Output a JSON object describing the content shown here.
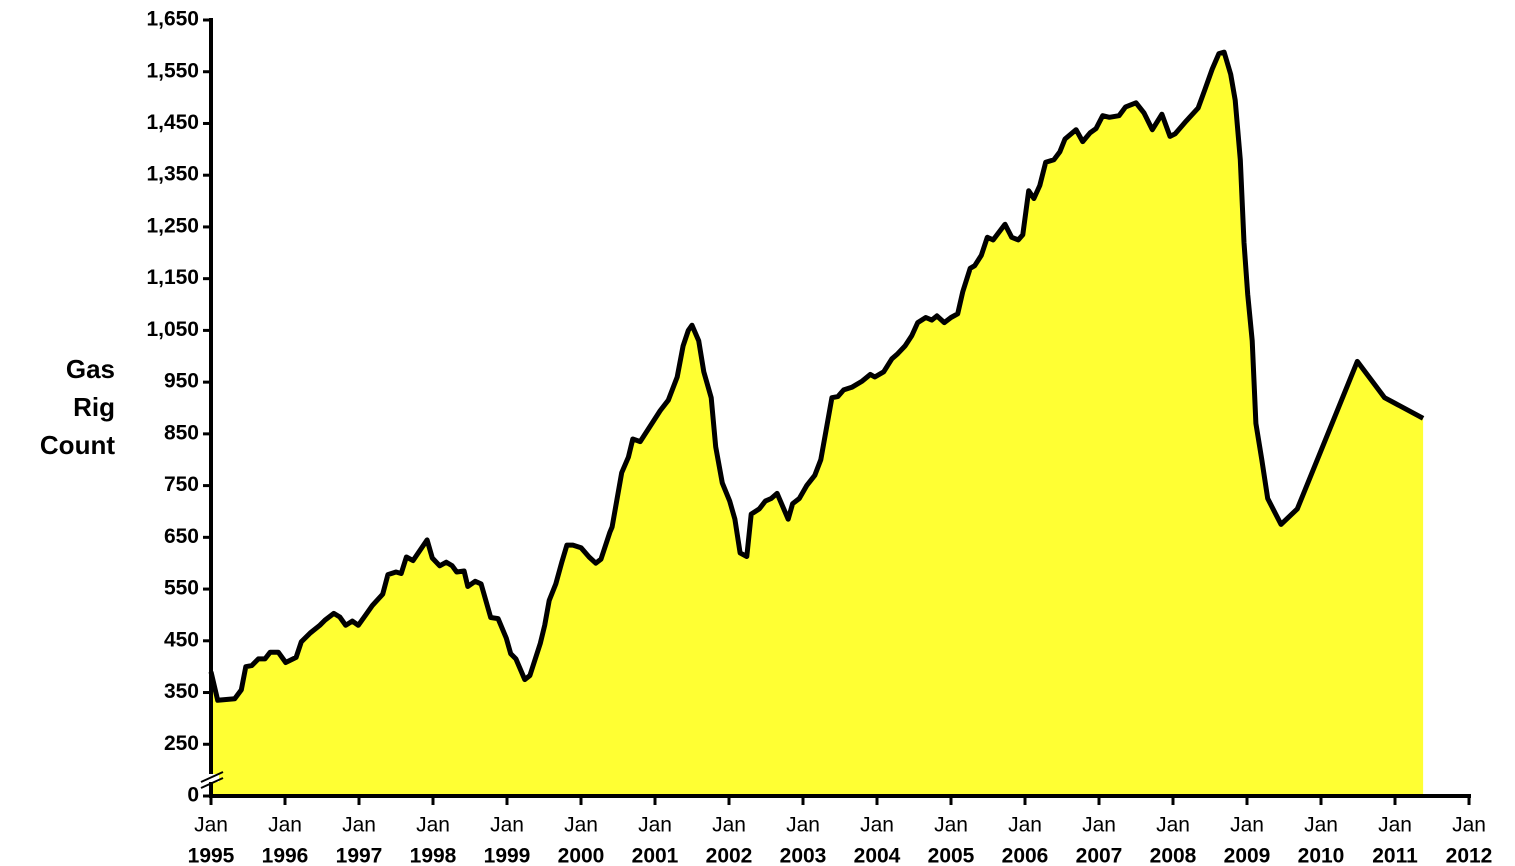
{
  "chart_data": {
    "type": "area",
    "ylabel": "Gas Rig Count",
    "x": [
      1995.0,
      1995.09,
      1995.32,
      1995.41,
      1995.47,
      1995.55,
      1995.64,
      1995.73,
      1995.8,
      1995.91,
      1996.01,
      1996.15,
      1996.22,
      1996.34,
      1996.47,
      1996.54,
      1996.66,
      1996.74,
      1996.82,
      1996.91,
      1996.99,
      1997.09,
      1997.18,
      1997.32,
      1997.39,
      1997.5,
      1997.57,
      1997.64,
      1997.73,
      1997.92,
      1997.99,
      1998.09,
      1998.18,
      1998.26,
      1998.32,
      1998.42,
      1998.47,
      1998.57,
      1998.65,
      1998.78,
      1998.88,
      1998.99,
      1999.05,
      1999.12,
      1999.24,
      1999.31,
      1999.45,
      1999.51,
      1999.57,
      1999.66,
      1999.74,
      1999.81,
      1999.89,
      2000.0,
      2000.11,
      2000.2,
      2000.27,
      2000.39,
      2000.42,
      2000.55,
      2000.64,
      2000.7,
      2000.8,
      2001.07,
      2001.18,
      2001.3,
      2001.38,
      2001.45,
      2001.5,
      2001.59,
      2001.66,
      2001.76,
      2001.82,
      2001.91,
      2002.01,
      2002.08,
      2002.15,
      2002.24,
      2002.3,
      2002.41,
      2002.49,
      2002.57,
      2002.65,
      2002.8,
      2002.86,
      2002.95,
      2003.05,
      2003.16,
      2003.24,
      2003.31,
      2003.39,
      2003.47,
      2003.55,
      2003.66,
      2003.8,
      2003.91,
      2003.97,
      2004.09,
      2004.2,
      2004.28,
      2004.38,
      2004.47,
      2004.55,
      2004.66,
      2004.74,
      2004.81,
      2004.91,
      2005.0,
      2005.09,
      2005.16,
      2005.26,
      2005.32,
      2005.41,
      2005.49,
      2005.57,
      2005.73,
      2005.82,
      2005.91,
      2005.97,
      2006.05,
      2006.12,
      2006.2,
      2006.28,
      2006.39,
      2006.47,
      2006.54,
      2006.69,
      2006.78,
      2006.88,
      2006.96,
      2007.05,
      2007.14,
      2007.27,
      2007.36,
      2007.5,
      2007.61,
      2007.72,
      2007.85,
      2007.96,
      2008.03,
      2008.18,
      2008.34,
      2008.43,
      2008.53,
      2008.62,
      2008.69,
      2008.78,
      2008.84,
      2008.91,
      2008.96,
      2009.01,
      2009.07,
      2009.12,
      2009.2,
      2009.28,
      2009.46,
      2009.68,
      2010.49,
      2010.86,
      2011.38
    ],
    "values": [
      390,
      335,
      338,
      355,
      400,
      402,
      415,
      415,
      428,
      428,
      408,
      418,
      448,
      465,
      480,
      490,
      503,
      496,
      480,
      488,
      480,
      500,
      518,
      540,
      578,
      583,
      580,
      612,
      605,
      645,
      610,
      595,
      602,
      595,
      583,
      585,
      555,
      565,
      560,
      495,
      493,
      455,
      425,
      415,
      375,
      383,
      445,
      480,
      528,
      560,
      602,
      635,
      635,
      630,
      612,
      600,
      608,
      660,
      670,
      775,
      805,
      840,
      835,
      895,
      915,
      960,
      1020,
      1050,
      1060,
      1030,
      970,
      920,
      825,
      755,
      720,
      685,
      620,
      613,
      695,
      705,
      720,
      725,
      735,
      685,
      715,
      725,
      750,
      770,
      800,
      855,
      920,
      922,
      935,
      940,
      952,
      965,
      960,
      970,
      995,
      1005,
      1020,
      1040,
      1065,
      1075,
      1070,
      1078,
      1065,
      1075,
      1082,
      1125,
      1170,
      1175,
      1195,
      1230,
      1225,
      1255,
      1230,
      1225,
      1235,
      1320,
      1305,
      1330,
      1375,
      1380,
      1395,
      1420,
      1438,
      1415,
      1432,
      1440,
      1465,
      1462,
      1465,
      1482,
      1490,
      1470,
      1438,
      1468,
      1425,
      1430,
      1455,
      1480,
      1515,
      1555,
      1585,
      1588,
      1545,
      1495,
      1380,
      1220,
      1120,
      1030,
      870,
      800,
      725,
      675,
      705,
      990,
      920,
      880
    ],
    "fill_color": "#ffff33",
    "line_color": "#000000",
    "ylim": [
      0,
      1650
    ],
    "axis_break": [
      0,
      150
    ],
    "yticks": [
      0,
      {
        "value": 250,
        "label": "250"
      },
      {
        "value": 350,
        "label": "350"
      },
      {
        "value": 450,
        "label": "450"
      },
      {
        "value": 550,
        "label": "550"
      },
      {
        "value": 650,
        "label": "650"
      },
      {
        "value": 750,
        "label": "750"
      },
      {
        "value": 850,
        "label": "850"
      },
      {
        "value": 950,
        "label": "950"
      },
      {
        "value": 1050,
        "label": "1,050"
      },
      {
        "value": 1150,
        "label": "1,150"
      },
      {
        "value": 1250,
        "label": "1,250"
      },
      {
        "value": 1350,
        "label": "1,350"
      },
      {
        "value": 1450,
        "label": "1,450"
      },
      {
        "value": 1550,
        "label": "1,550"
      },
      {
        "value": 1650,
        "label": "1,650"
      }
    ],
    "xlim": [
      1995,
      2012
    ],
    "xtick_month": "Jan",
    "xticks": [
      1995,
      1996,
      1997,
      1998,
      1999,
      2000,
      2001,
      2002,
      2003,
      2004,
      2005,
      2006,
      2007,
      2008,
      2009,
      2010,
      2011,
      2012
    ],
    "grid": false
  }
}
